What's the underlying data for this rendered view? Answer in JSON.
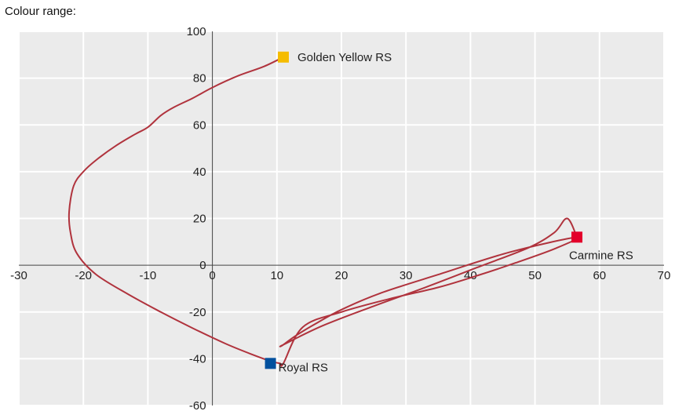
{
  "chart_data": {
    "type": "line",
    "title": "Colour range:",
    "xlabel": "",
    "ylabel": "",
    "xlim": [
      -30,
      70
    ],
    "ylim": [
      -60,
      100
    ],
    "x_ticks": [
      -30,
      -20,
      -10,
      0,
      10,
      20,
      30,
      40,
      50,
      60,
      70
    ],
    "y_ticks": [
      -60,
      -40,
      -20,
      0,
      20,
      40,
      60,
      80,
      100
    ],
    "grid": true,
    "colors": {
      "background": "#ebebeb",
      "grid": "#ffffff",
      "curve": "#b0333d",
      "axis": "#444444"
    },
    "series": [
      {
        "color": "#b0333d",
        "x": [
          11,
          8,
          4,
          0,
          -3,
          -6,
          -8,
          -10,
          -12,
          -15,
          -18,
          -20,
          -21.5,
          -22.2,
          -22,
          -21,
          -18,
          -13,
          -8,
          -3,
          2,
          6,
          9,
          10.5,
          11,
          14,
          20,
          28,
          35,
          41,
          47,
          53,
          56.5,
          46,
          35,
          26,
          20,
          16,
          13,
          11,
          11,
          17,
          25,
          33,
          41,
          49,
          53,
          55,
          56.5
        ],
        "y": [
          89,
          85,
          81,
          76,
          71.5,
          67.5,
          64,
          59,
          56,
          51,
          45,
          40,
          34,
          23,
          14,
          5,
          -4,
          -12.5,
          -20,
          -27,
          -33.5,
          -38,
          -41,
          -42,
          -42,
          -26.5,
          -20,
          -14,
          -9.5,
          -4.5,
          1,
          7,
          12,
          5.5,
          -4,
          -12,
          -19,
          -25,
          -30,
          -34,
          -34,
          -26,
          -17.5,
          -9.5,
          -1,
          7.5,
          14,
          20,
          12
        ]
      }
    ],
    "points": [
      {
        "label": "Golden Yellow RS",
        "x": 11,
        "y": 89,
        "color": "#f5bc00"
      },
      {
        "label": "Carmine RS",
        "x": 56.5,
        "y": 12,
        "color": "#e3002b"
      },
      {
        "label": "Royal RS",
        "x": 9,
        "y": -42,
        "color": "#00509e"
      }
    ]
  }
}
